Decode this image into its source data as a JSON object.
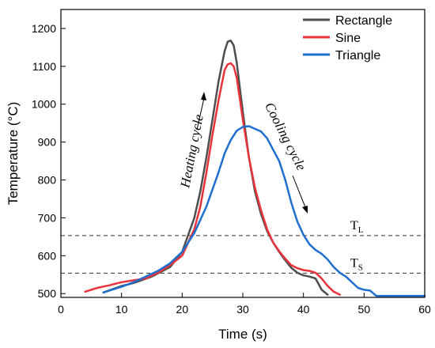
{
  "chart_data": {
    "type": "line",
    "xlabel": "Time (s)",
    "ylabel": "Temperature (°C)",
    "xlim": [
      0,
      60
    ],
    "ylim": [
      490,
      1250
    ],
    "xticks": [
      0,
      10,
      20,
      30,
      40,
      50,
      60
    ],
    "yticks": [
      500,
      600,
      700,
      800,
      900,
      1000,
      1100,
      1200
    ],
    "grid": false,
    "legend_position": "top-right",
    "series": [
      {
        "name": "Rectangle",
        "color": "#4d4d4d",
        "x": [
          7,
          10,
          12,
          15,
          18,
          20,
          22,
          23,
          24,
          25,
          26,
          27,
          27.5,
          28,
          28.5,
          29,
          30,
          31,
          32,
          33,
          34,
          35,
          36,
          37,
          38,
          39,
          40,
          41,
          42,
          43,
          44
        ],
        "y": [
          503,
          520,
          528,
          545,
          570,
          610,
          700,
          770,
          860,
          960,
          1060,
          1140,
          1165,
          1168,
          1155,
          1110,
          980,
          860,
          770,
          710,
          665,
          635,
          610,
          588,
          568,
          555,
          548,
          545,
          540,
          510,
          497
        ]
      },
      {
        "name": "Sine",
        "color": "#e8333a",
        "x": [
          4,
          6,
          8,
          10,
          12,
          14,
          16,
          18,
          20,
          22,
          23,
          24,
          25,
          26,
          27,
          27.5,
          28,
          28.5,
          29,
          30,
          31,
          32,
          33,
          34,
          35,
          36,
          37,
          38,
          39,
          40,
          41,
          42,
          43,
          44,
          45,
          46
        ],
        "y": [
          505,
          515,
          522,
          530,
          535,
          540,
          555,
          575,
          600,
          670,
          730,
          820,
          920,
          1010,
          1090,
          1105,
          1108,
          1100,
          1070,
          960,
          860,
          780,
          720,
          670,
          635,
          612,
          592,
          575,
          567,
          562,
          560,
          555,
          540,
          520,
          505,
          497
        ]
      },
      {
        "name": "Triangle",
        "color": "#1f6fd0",
        "x": [
          7,
          10,
          12,
          14,
          16,
          18,
          20,
          22,
          24,
          26,
          27,
          28,
          29,
          30,
          31,
          32,
          33,
          34,
          35,
          36,
          37,
          38,
          39,
          40,
          41,
          42,
          43,
          44,
          45,
          46,
          47,
          48,
          49,
          50,
          51,
          52,
          55,
          60
        ],
        "y": [
          503,
          518,
          530,
          545,
          560,
          580,
          610,
          660,
          730,
          820,
          870,
          905,
          930,
          940,
          942,
          935,
          928,
          910,
          880,
          850,
          800,
          740,
          690,
          655,
          630,
          615,
          605,
          590,
          570,
          555,
          545,
          530,
          515,
          510,
          508,
          494,
          494,
          494
        ]
      }
    ],
    "reference_lines": [
      {
        "y": 653,
        "label": "T",
        "sub": "L"
      },
      {
        "y": 554,
        "label": "T",
        "sub": "S"
      }
    ],
    "annotations": [
      {
        "text": "Heating cycle"
      },
      {
        "text": "Cooling cycle"
      }
    ]
  }
}
